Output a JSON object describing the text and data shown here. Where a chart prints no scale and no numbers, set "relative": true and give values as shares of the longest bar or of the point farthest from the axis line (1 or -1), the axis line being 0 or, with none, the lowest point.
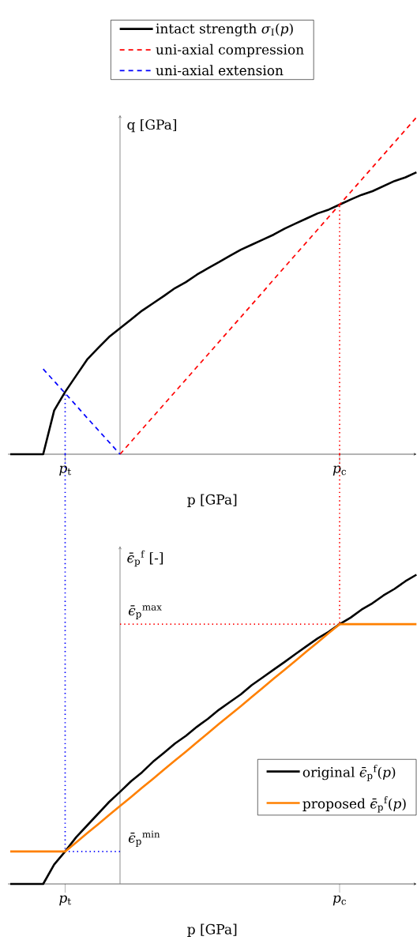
{
  "chart_data": [
    {
      "type": "line",
      "relative": true,
      "xlabel": "p [GPa]",
      "ylabel": "q [GPa]",
      "categories": [
        null,
        null,
        null,
        null,
        null,
        "*p*$_{t}$",
        null,
        null,
        null,
        null,
        null,
        null,
        null,
        null,
        null,
        null,
        null,
        null,
        null,
        null,
        null,
        null,
        null,
        null,
        null,
        null,
        null,
        null,
        null,
        null,
        "*p*$_{c}$",
        null,
        null,
        null,
        null,
        null,
        null,
        null
      ],
      "legend": "top",
      "series": [
        {
          "name": "intact strength *σ*$_{I}$(*p*)",
          "color": "#000000",
          "line_style": "solid",
          "values": [
            0,
            0,
            0,
            0,
            0.13,
            0.185,
            0.233,
            0.281,
            0.315,
            0.348,
            0.374,
            0.4,
            0.426,
            0.448,
            0.47,
            0.493,
            0.511,
            0.533,
            0.552,
            0.57,
            0.589,
            0.607,
            0.622,
            0.637,
            0.652,
            0.67,
            0.685,
            0.7,
            0.715,
            0.726,
            0.741,
            0.756,
            0.77,
            0.781,
            0.796,
            0.811,
            0.822,
            0.837
          ]
        },
        {
          "name": "uni-axial compression",
          "color": "#ff0000",
          "line_style": "dashed",
          "values": [
            null,
            null,
            null,
            null,
            null,
            null,
            null,
            null,
            null,
            null,
            0,
            0.037,
            0.074,
            0.111,
            0.148,
            0.185,
            0.222,
            0.259,
            0.296,
            0.333,
            0.37,
            0.407,
            0.444,
            0.481,
            0.519,
            0.556,
            0.593,
            0.63,
            0.667,
            0.704,
            0.741,
            0.778,
            0.815,
            0.852,
            0.889,
            0.926,
            0.963,
            1
          ]
        },
        {
          "name": "uni-axial extension",
          "color": "#0000ff",
          "line_style": "dashed",
          "values": [
            null,
            null,
            null,
            0.253,
            0.217,
            0.181,
            0.145,
            0.108,
            0.072,
            0.036,
            0,
            null,
            null,
            null,
            null,
            null,
            null,
            null,
            null,
            null,
            null,
            null,
            null,
            null,
            null,
            null,
            null,
            null,
            null,
            null,
            null,
            null,
            null,
            null,
            null,
            null,
            null,
            null
          ]
        }
      ],
      "ref_lines": [
        {
          "axis": "x",
          "value": "*p*$_{t}$",
          "color": "#0000ff",
          "line_style": "dotted"
        },
        {
          "axis": "x",
          "value": "*p*$_{c}$",
          "color": "#ff0000",
          "line_style": "dotted"
        }
      ]
    },
    {
      "type": "line",
      "relative": true,
      "xlabel": "p [GPa]",
      "ylabel": "*ϵ̄*$_{p}$$^{f}$ [-]",
      "categories": [
        null,
        null,
        null,
        null,
        null,
        "*p*$_{t}$",
        null,
        null,
        null,
        null,
        null,
        null,
        null,
        null,
        null,
        null,
        null,
        null,
        null,
        null,
        null,
        null,
        null,
        null,
        null,
        null,
        null,
        null,
        null,
        null,
        "*p*$_{c}$",
        null,
        null,
        null,
        null,
        null,
        null,
        null
      ],
      "legend": "bottom right",
      "series": [
        {
          "name": "original *ϵ̄*$_{p}$$^{f}$(*p*)",
          "color": "#000000",
          "line_style": "solid",
          "values": [
            0,
            0,
            0,
            0,
            0.063,
            0.105,
            0.151,
            0.189,
            0.227,
            0.265,
            0.298,
            0.332,
            0.361,
            0.395,
            0.424,
            0.454,
            0.479,
            0.508,
            0.534,
            0.563,
            0.588,
            0.613,
            0.643,
            0.668,
            0.693,
            0.718,
            0.744,
            0.769,
            0.794,
            0.815,
            0.84,
            0.861,
            0.887,
            0.908,
            0.933,
            0.954,
            0.979,
            1
          ]
        },
        {
          "name": "proposed *ϵ̄*$_{p}$$^{f}$(*p*)",
          "color": "#ff8000",
          "line_style": "solid",
          "values": [
            0.105,
            0.105,
            0.105,
            0.105,
            0.105,
            0.105,
            0.134,
            0.164,
            0.193,
            0.223,
            0.252,
            0.281,
            0.311,
            0.34,
            0.37,
            0.399,
            0.428,
            0.458,
            0.487,
            0.517,
            0.546,
            0.575,
            0.605,
            0.634,
            0.664,
            0.693,
            0.722,
            0.752,
            0.781,
            0.811,
            0.84,
            0.84,
            0.84,
            0.84,
            0.84,
            0.84,
            0.84,
            0.84
          ]
        }
      ],
      "ref_lines": [
        {
          "axis": "x",
          "value": "*p*$_{t}$",
          "color": "#0000ff",
          "line_style": "dotted"
        },
        {
          "axis": "x",
          "value": "*p*$_{c}$",
          "color": "#ff0000",
          "line_style": "dotted"
        },
        {
          "axis": "y",
          "value": 0.84,
          "color": "#ff0000",
          "line_style": "dotted",
          "label": "*ϵ̄*$_{p}$$^{max}$"
        },
        {
          "axis": "y",
          "value": 0.105,
          "color": "#0000ff",
          "line_style": "dotted",
          "label": "*ϵ̄*$_{p}$$^{min}$"
        }
      ]
    }
  ]
}
